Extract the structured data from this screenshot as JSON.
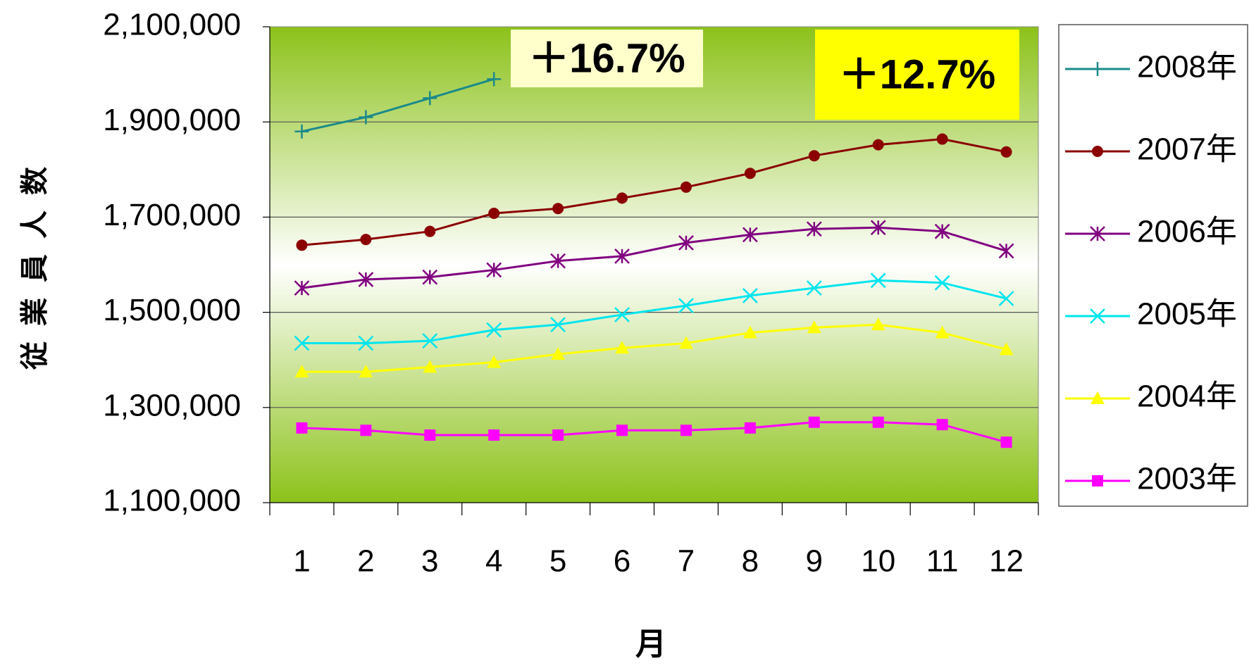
{
  "chart_data": {
    "type": "line",
    "x_label": "月",
    "y_label": "従業員人数",
    "categories": [
      "1",
      "2",
      "3",
      "4",
      "5",
      "6",
      "7",
      "8",
      "9",
      "10",
      "11",
      "12"
    ],
    "series": [
      {
        "name": "2008年",
        "color": "#1a8a8a",
        "marker": "plus",
        "values": [
          1880000,
          1910000,
          1950000,
          1990000,
          null,
          null,
          null,
          null,
          null,
          null,
          null,
          null
        ]
      },
      {
        "name": "2007年",
        "color": "#8b0000",
        "marker": "circle",
        "values": [
          1641000,
          1653000,
          1670000,
          1708000,
          1718000,
          1740000,
          1763000,
          1792000,
          1829000,
          1852000,
          1864000,
          1837000
        ]
      },
      {
        "name": "2006年",
        "color": "#800080",
        "marker": "star",
        "values": [
          1551000,
          1569000,
          1574000,
          1589000,
          1608000,
          1618000,
          1646000,
          1663000,
          1675000,
          1678000,
          1670000,
          1629000
        ]
      },
      {
        "name": "2005年",
        "color": "#00e5ee",
        "marker": "x",
        "values": [
          1435000,
          1435000,
          1440000,
          1463000,
          1474000,
          1495000,
          1514000,
          1535000,
          1551000,
          1567000,
          1562000,
          1529000
        ]
      },
      {
        "name": "2004年",
        "color": "#ffff00",
        "marker": "triangle",
        "values": [
          1375000,
          1375000,
          1385000,
          1395000,
          1412000,
          1425000,
          1435000,
          1457000,
          1468000,
          1474000,
          1457000,
          1422000
        ]
      },
      {
        "name": "2003年",
        "color": "#ff00ff",
        "marker": "square",
        "values": [
          1257000,
          1252000,
          1242000,
          1242000,
          1242000,
          1252000,
          1252000,
          1257000,
          1269000,
          1269000,
          1264000,
          1227000
        ]
      }
    ],
    "ylim": [
      1100000,
      2100000
    ],
    "yticks": [
      {
        "value": 1100000,
        "label": "1,100,000"
      },
      {
        "value": 1300000,
        "label": "1,300,000"
      },
      {
        "value": 1500000,
        "label": "1,500,000"
      },
      {
        "value": 1700000,
        "label": "1,700,000"
      },
      {
        "value": 1900000,
        "label": "1,900,000"
      },
      {
        "value": 2100000,
        "label": "2,100,000"
      }
    ],
    "grid": true,
    "legend": "right",
    "annotations": [
      {
        "text": "＋16.7%",
        "background": "#ffffcc"
      },
      {
        "text": "＋12.7%",
        "background": "#ffff00"
      }
    ]
  }
}
